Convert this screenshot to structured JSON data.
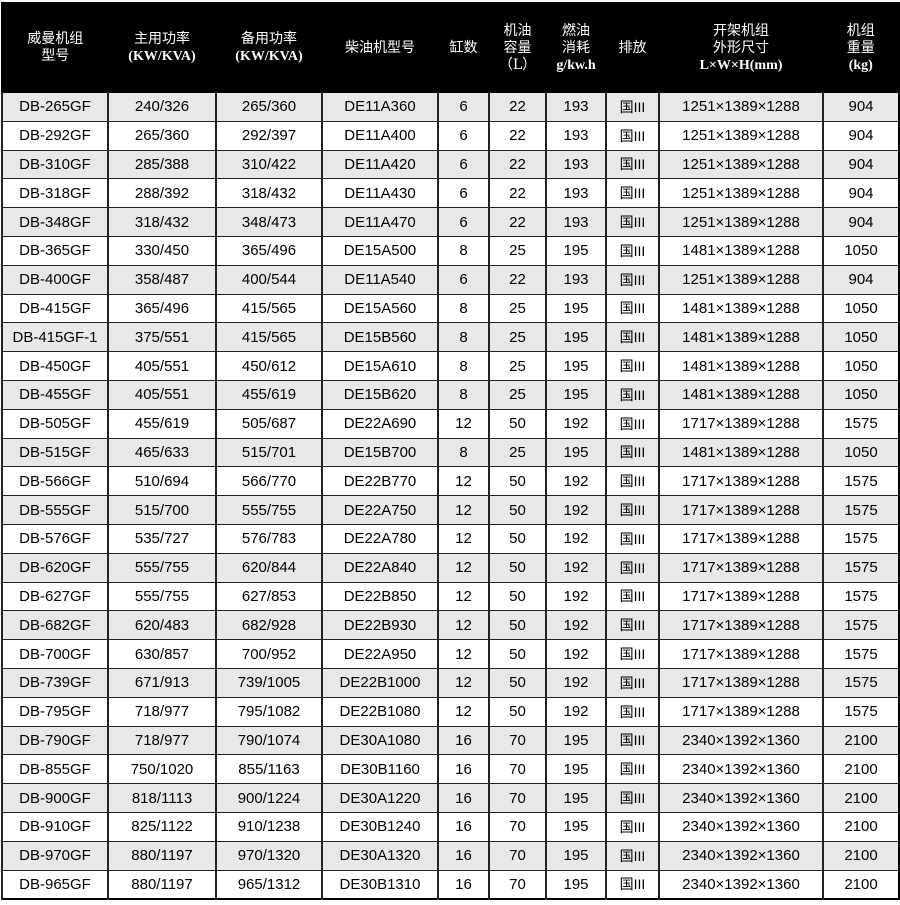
{
  "headers": [
    {
      "line1": "威曼机组",
      "line2": "型号",
      "line3": ""
    },
    {
      "line1": "主用功率",
      "line2": "(KW/KVA)",
      "line3": ""
    },
    {
      "line1": "备用功率",
      "line2": "(KW/KVA)",
      "line3": ""
    },
    {
      "line1": "柴油机型号",
      "line2": "",
      "line3": ""
    },
    {
      "line1": "缸数",
      "line2": "",
      "line3": ""
    },
    {
      "line1": "机油",
      "line2": "容量",
      "line3": "（L）"
    },
    {
      "line1": "燃油",
      "line2": "消耗",
      "line3": "g/kw.h"
    },
    {
      "line1": "排放",
      "line2": "",
      "line3": ""
    },
    {
      "line1": "开架机组",
      "line2": "外形尺寸",
      "line3": "L×W×H(mm)"
    },
    {
      "line1": "机组",
      "line2": "重量",
      "line3": "(kg)"
    }
  ],
  "rows": [
    [
      "DB-265GF",
      "240/326",
      "265/360",
      "DE11A360",
      "6",
      "22",
      "193",
      "国III",
      "1251×1389×1288",
      "904"
    ],
    [
      "DB-292GF",
      "265/360",
      "292/397",
      "DE11A400",
      "6",
      "22",
      "193",
      "国III",
      "1251×1389×1288",
      "904"
    ],
    [
      "DB-310GF",
      "285/388",
      "310/422",
      "DE11A420",
      "6",
      "22",
      "193",
      "国III",
      "1251×1389×1288",
      "904"
    ],
    [
      "DB-318GF",
      "288/392",
      "318/432",
      "DE11A430",
      "6",
      "22",
      "193",
      "国III",
      "1251×1389×1288",
      "904"
    ],
    [
      "DB-348GF",
      "318/432",
      "348/473",
      "DE11A470",
      "6",
      "22",
      "193",
      "国III",
      "1251×1389×1288",
      "904"
    ],
    [
      "DB-365GF",
      "330/450",
      "365/496",
      "DE15A500",
      "8",
      "25",
      "195",
      "国III",
      "1481×1389×1288",
      "1050"
    ],
    [
      "DB-400GF",
      "358/487",
      "400/544",
      "DE11A540",
      "6",
      "22",
      "193",
      "国III",
      "1251×1389×1288",
      "904"
    ],
    [
      "DB-415GF",
      "365/496",
      "415/565",
      "DE15A560",
      "8",
      "25",
      "195",
      "国III",
      "1481×1389×1288",
      "1050"
    ],
    [
      "DB-415GF-1",
      "375/551",
      "415/565",
      "DE15B560",
      "8",
      "25",
      "195",
      "国III",
      "1481×1389×1288",
      "1050"
    ],
    [
      "DB-450GF",
      "405/551",
      "450/612",
      "DE15A610",
      "8",
      "25",
      "195",
      "国III",
      "1481×1389×1288",
      "1050"
    ],
    [
      "DB-455GF",
      "405/551",
      "455/619",
      "DE15B620",
      "8",
      "25",
      "195",
      "国III",
      "1481×1389×1288",
      "1050"
    ],
    [
      "DB-505GF",
      "455/619",
      "505/687",
      "DE22A690",
      "12",
      "50",
      "192",
      "国III",
      "1717×1389×1288",
      "1575"
    ],
    [
      "DB-515GF",
      "465/633",
      "515/701",
      "DE15B700",
      "8",
      "25",
      "195",
      "国III",
      "1481×1389×1288",
      "1050"
    ],
    [
      "DB-566GF",
      "510/694",
      "566/770",
      "DE22B770",
      "12",
      "50",
      "192",
      "国III",
      "1717×1389×1288",
      "1575"
    ],
    [
      "DB-555GF",
      "515/700",
      "555/755",
      "DE22A750",
      "12",
      "50",
      "192",
      "国III",
      "1717×1389×1288",
      "1575"
    ],
    [
      "DB-576GF",
      "535/727",
      "576/783",
      "DE22A780",
      "12",
      "50",
      "192",
      "国III",
      "1717×1389×1288",
      "1575"
    ],
    [
      "DB-620GF",
      "555/755",
      "620/844",
      "DE22A840",
      "12",
      "50",
      "192",
      "国III",
      "1717×1389×1288",
      "1575"
    ],
    [
      "DB-627GF",
      "555/755",
      "627/853",
      "DE22B850",
      "12",
      "50",
      "192",
      "国III",
      "1717×1389×1288",
      "1575"
    ],
    [
      "DB-682GF",
      "620/483",
      "682/928",
      "DE22B930",
      "12",
      "50",
      "192",
      "国III",
      "1717×1389×1288",
      "1575"
    ],
    [
      "DB-700GF",
      "630/857",
      "700/952",
      "DE22A950",
      "12",
      "50",
      "192",
      "国III",
      "1717×1389×1288",
      "1575"
    ],
    [
      "DB-739GF",
      "671/913",
      "739/1005",
      "DE22B1000",
      "12",
      "50",
      "192",
      "国III",
      "1717×1389×1288",
      "1575"
    ],
    [
      "DB-795GF",
      "718/977",
      "795/1082",
      "DE22B1080",
      "12",
      "50",
      "192",
      "国III",
      "1717×1389×1288",
      "1575"
    ],
    [
      "DB-790GF",
      "718/977",
      "790/1074",
      "DE30A1080",
      "16",
      "70",
      "195",
      "国III",
      "2340×1392×1360",
      "2100"
    ],
    [
      "DB-855GF",
      "750/1020",
      "855/1163",
      "DE30B1160",
      "16",
      "70",
      "195",
      "国III",
      "2340×1392×1360",
      "2100"
    ],
    [
      "DB-900GF",
      "818/1113",
      "900/1224",
      "DE30A1220",
      "16",
      "70",
      "195",
      "国III",
      "2340×1392×1360",
      "2100"
    ],
    [
      "DB-910GF",
      "825/1122",
      "910/1238",
      "DE30B1240",
      "16",
      "70",
      "195",
      "国III",
      "2340×1392×1360",
      "2100"
    ],
    [
      "DB-970GF",
      "880/1197",
      "970/1320",
      "DE30A1320",
      "16",
      "70",
      "195",
      "国III",
      "2340×1392×1360",
      "2100"
    ],
    [
      "DB-965GF",
      "880/1197",
      "965/1312",
      "DE30B1310",
      "16",
      "70",
      "195",
      "国III",
      "2340×1392×1360",
      "2100"
    ]
  ]
}
